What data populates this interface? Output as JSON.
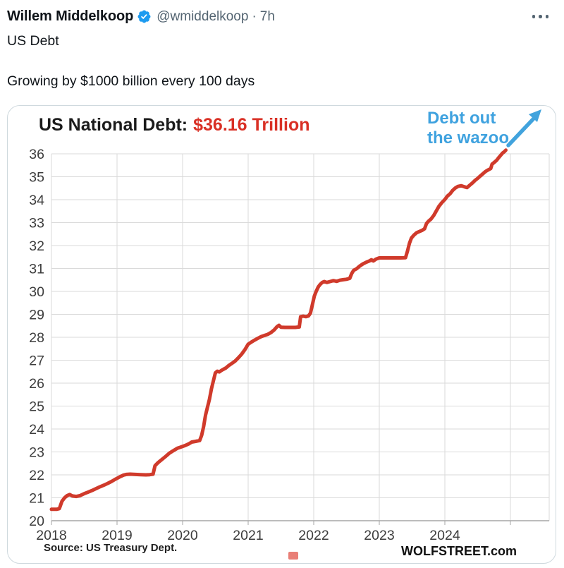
{
  "tweet": {
    "author": "Willem Middelkoop",
    "handle": "@wmiddelkoop",
    "separator": "·",
    "time": "7h",
    "line1": "US Debt",
    "line2": "Growing by $1000 billion every 100 days",
    "verified_badge_color": "#1d9bf0",
    "secondary_text_color": "#536471"
  },
  "chart": {
    "title_prefix": "US National Debt:",
    "title_value": "$36.16 Trillion",
    "annotation_line1": "Debt out",
    "annotation_line2": "the wazoo",
    "source": "Source: US Treasury Dept.",
    "brand": "WOLFSTREET.com",
    "colors": {
      "line": "#d03a2b",
      "title_red": "#d93025",
      "annotation_blue": "#3fa2df",
      "arrow": "#41a3dd",
      "grid": "#dadada",
      "axis": "#a6a6a6",
      "legend_key_pink": "#e97f77",
      "card_border": "#cfd9de"
    }
  },
  "chart_data": {
    "type": "line",
    "title": "US National Debt: $36.16 Trillion",
    "subtitle_annotation": "Debt out the wazoo",
    "series_name": "US national debt, $ trillions",
    "xlabel": "",
    "ylabel": "",
    "xlim": [
      2018,
      2025.6
    ],
    "ylim": [
      20,
      36
    ],
    "grid": true,
    "legend_position": "none",
    "x_ticks": [
      "2018",
      "2019",
      "2020",
      "2021",
      "2022",
      "2023",
      "2024"
    ],
    "y_ticks": [
      20,
      21,
      22,
      23,
      24,
      25,
      26,
      27,
      28,
      29,
      30,
      31,
      32,
      33,
      34,
      35,
      36
    ],
    "end_value": 36.16,
    "source": "Source: US Treasury Dept.",
    "watermark": "WOLFSTREET.com",
    "points": [
      [
        2018.0,
        20.5
      ],
      [
        2018.08,
        20.5
      ],
      [
        2018.12,
        20.53
      ],
      [
        2018.16,
        20.85
      ],
      [
        2018.2,
        21.0
      ],
      [
        2018.24,
        21.1
      ],
      [
        2018.28,
        21.14
      ],
      [
        2018.32,
        21.08
      ],
      [
        2018.38,
        21.06
      ],
      [
        2018.44,
        21.1
      ],
      [
        2018.5,
        21.18
      ],
      [
        2018.56,
        21.25
      ],
      [
        2018.62,
        21.32
      ],
      [
        2018.68,
        21.4
      ],
      [
        2018.74,
        21.48
      ],
      [
        2018.8,
        21.55
      ],
      [
        2018.86,
        21.63
      ],
      [
        2018.92,
        21.72
      ],
      [
        2018.98,
        21.82
      ],
      [
        2019.04,
        21.91
      ],
      [
        2019.1,
        21.99
      ],
      [
        2019.14,
        22.02
      ],
      [
        2019.2,
        22.03
      ],
      [
        2019.28,
        22.02
      ],
      [
        2019.36,
        22.01
      ],
      [
        2019.44,
        22.0
      ],
      [
        2019.5,
        22.01
      ],
      [
        2019.55,
        22.03
      ],
      [
        2019.58,
        22.4
      ],
      [
        2019.62,
        22.52
      ],
      [
        2019.68,
        22.66
      ],
      [
        2019.74,
        22.8
      ],
      [
        2019.8,
        22.95
      ],
      [
        2019.86,
        23.06
      ],
      [
        2019.92,
        23.16
      ],
      [
        2019.98,
        23.22
      ],
      [
        2020.04,
        23.28
      ],
      [
        2020.1,
        23.36
      ],
      [
        2020.14,
        23.43
      ],
      [
        2020.2,
        23.46
      ],
      [
        2020.26,
        23.5
      ],
      [
        2020.29,
        23.72
      ],
      [
        2020.32,
        24.1
      ],
      [
        2020.35,
        24.6
      ],
      [
        2020.38,
        24.95
      ],
      [
        2020.41,
        25.3
      ],
      [
        2020.44,
        25.75
      ],
      [
        2020.47,
        26.1
      ],
      [
        2020.5,
        26.45
      ],
      [
        2020.53,
        26.52
      ],
      [
        2020.56,
        26.49
      ],
      [
        2020.59,
        26.55
      ],
      [
        2020.62,
        26.6
      ],
      [
        2020.66,
        26.66
      ],
      [
        2020.7,
        26.76
      ],
      [
        2020.75,
        26.86
      ],
      [
        2020.8,
        26.96
      ],
      [
        2020.85,
        27.1
      ],
      [
        2020.9,
        27.26
      ],
      [
        2020.95,
        27.46
      ],
      [
        2021.0,
        27.7
      ],
      [
        2021.05,
        27.79
      ],
      [
        2021.1,
        27.88
      ],
      [
        2021.15,
        27.96
      ],
      [
        2021.2,
        28.03
      ],
      [
        2021.25,
        28.08
      ],
      [
        2021.3,
        28.13
      ],
      [
        2021.35,
        28.21
      ],
      [
        2021.4,
        28.33
      ],
      [
        2021.44,
        28.46
      ],
      [
        2021.47,
        28.52
      ],
      [
        2021.5,
        28.44
      ],
      [
        2021.56,
        28.43
      ],
      [
        2021.64,
        28.43
      ],
      [
        2021.72,
        28.43
      ],
      [
        2021.78,
        28.45
      ],
      [
        2021.8,
        28.9
      ],
      [
        2021.84,
        28.92
      ],
      [
        2021.88,
        28.9
      ],
      [
        2021.92,
        28.93
      ],
      [
        2021.95,
        29.06
      ],
      [
        2021.98,
        29.42
      ],
      [
        2022.01,
        29.8
      ],
      [
        2022.04,
        30.02
      ],
      [
        2022.07,
        30.2
      ],
      [
        2022.1,
        30.31
      ],
      [
        2022.13,
        30.39
      ],
      [
        2022.16,
        30.43
      ],
      [
        2022.2,
        30.39
      ],
      [
        2022.25,
        30.43
      ],
      [
        2022.3,
        30.47
      ],
      [
        2022.35,
        30.44
      ],
      [
        2022.4,
        30.49
      ],
      [
        2022.45,
        30.51
      ],
      [
        2022.5,
        30.53
      ],
      [
        2022.55,
        30.57
      ],
      [
        2022.58,
        30.78
      ],
      [
        2022.61,
        30.92
      ],
      [
        2022.65,
        30.98
      ],
      [
        2022.7,
        31.1
      ],
      [
        2022.75,
        31.2
      ],
      [
        2022.8,
        31.27
      ],
      [
        2022.85,
        31.33
      ],
      [
        2022.88,
        31.38
      ],
      [
        2022.91,
        31.33
      ],
      [
        2022.95,
        31.41
      ],
      [
        2023.0,
        31.46
      ],
      [
        2023.08,
        31.46
      ],
      [
        2023.16,
        31.46
      ],
      [
        2023.24,
        31.46
      ],
      [
        2023.32,
        31.46
      ],
      [
        2023.4,
        31.47
      ],
      [
        2023.43,
        31.76
      ],
      [
        2023.46,
        32.1
      ],
      [
        2023.49,
        32.33
      ],
      [
        2023.53,
        32.46
      ],
      [
        2023.57,
        32.56
      ],
      [
        2023.61,
        32.61
      ],
      [
        2023.65,
        32.66
      ],
      [
        2023.69,
        32.73
      ],
      [
        2023.72,
        32.96
      ],
      [
        2023.75,
        33.06
      ],
      [
        2023.79,
        33.16
      ],
      [
        2023.83,
        33.31
      ],
      [
        2023.87,
        33.51
      ],
      [
        2023.91,
        33.71
      ],
      [
        2023.95,
        33.86
      ],
      [
        2024.0,
        34.01
      ],
      [
        2024.04,
        34.16
      ],
      [
        2024.08,
        34.26
      ],
      [
        2024.12,
        34.41
      ],
      [
        2024.16,
        34.51
      ],
      [
        2024.2,
        34.58
      ],
      [
        2024.25,
        34.61
      ],
      [
        2024.3,
        34.56
      ],
      [
        2024.34,
        34.53
      ],
      [
        2024.38,
        34.63
      ],
      [
        2024.42,
        34.73
      ],
      [
        2024.46,
        34.84
      ],
      [
        2024.5,
        34.93
      ],
      [
        2024.54,
        35.03
      ],
      [
        2024.58,
        35.13
      ],
      [
        2024.62,
        35.23
      ],
      [
        2024.66,
        35.3
      ],
      [
        2024.7,
        35.36
      ],
      [
        2024.72,
        35.55
      ],
      [
        2024.75,
        35.62
      ],
      [
        2024.79,
        35.72
      ],
      [
        2024.82,
        35.83
      ],
      [
        2024.85,
        35.93
      ],
      [
        2024.88,
        36.03
      ],
      [
        2024.91,
        36.1
      ],
      [
        2024.93,
        36.16
      ]
    ]
  }
}
